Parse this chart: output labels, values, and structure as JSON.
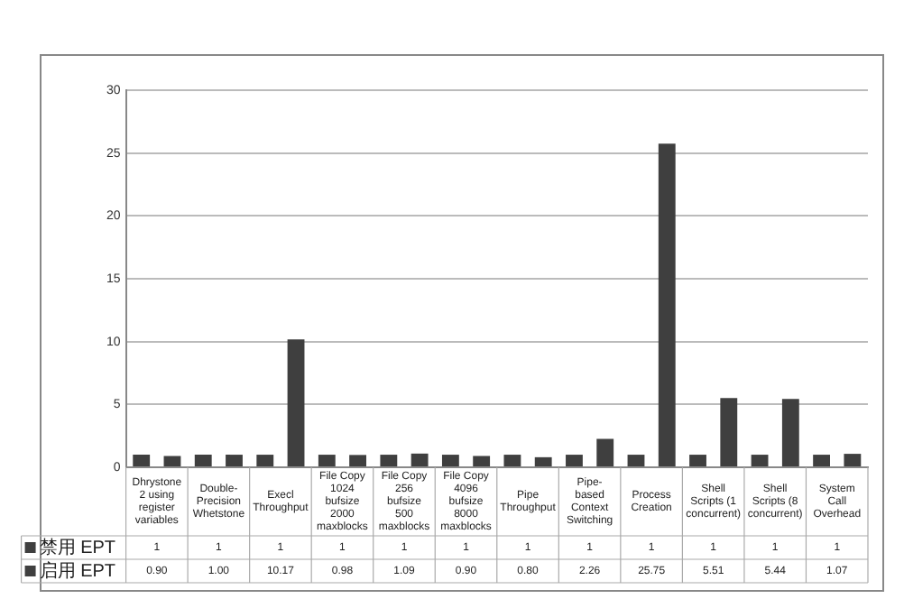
{
  "chart_data": {
    "type": "bar",
    "categories": [
      "Dhrystone 2 using register variables",
      "Double-Precision Whetstone",
      "Execl Throughput",
      "File Copy 1024 bufsize 2000 maxblocks",
      "File Copy 256 bufsize 500 maxblocks",
      "File Copy 4096 bufsize 8000 maxblocks",
      "Pipe Throughput",
      "Pipe-based Context Switching",
      "Process Creation",
      "Shell Scripts (1 concurrent)",
      "Shell Scripts (8 concurrent)",
      "System Call Overhead"
    ],
    "series": [
      {
        "name": "禁用 EPT",
        "color": "#3f3f3f",
        "values": [
          1,
          1,
          1,
          1,
          1,
          1,
          1,
          1,
          1,
          1,
          1,
          1
        ],
        "value_labels": [
          "1",
          "1",
          "1",
          "1",
          "1",
          "1",
          "1",
          "1",
          "1",
          "1",
          "1",
          "1"
        ]
      },
      {
        "name": "启用 EPT",
        "color": "#3f3f3f",
        "values": [
          0.9,
          1.0,
          10.17,
          0.98,
          1.09,
          0.9,
          0.8,
          2.26,
          25.75,
          5.51,
          5.44,
          1.07
        ],
        "value_labels": [
          "0.90",
          "1.00",
          "10.17",
          "0.98",
          "1.09",
          "0.90",
          "0.80",
          "2.26",
          "25.75",
          "5.51",
          "5.44",
          "1.07"
        ]
      }
    ],
    "ylim": [
      0,
      30
    ],
    "yticks": [
      0,
      5,
      10,
      15,
      20,
      25,
      30
    ],
    "grid": "y",
    "legend": "bottom"
  }
}
